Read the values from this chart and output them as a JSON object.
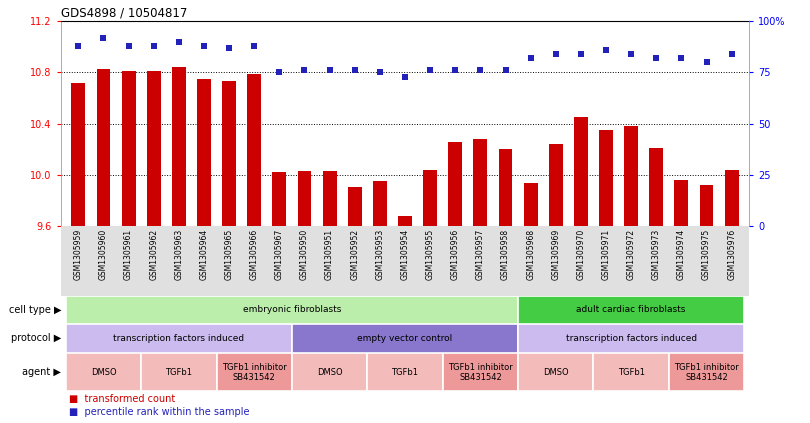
{
  "title": "GDS4898 / 10504817",
  "samples": [
    "GSM1305959",
    "GSM1305960",
    "GSM1305961",
    "GSM1305962",
    "GSM1305963",
    "GSM1305964",
    "GSM1305965",
    "GSM1305966",
    "GSM1305967",
    "GSM1305950",
    "GSM1305951",
    "GSM1305952",
    "GSM1305953",
    "GSM1305954",
    "GSM1305955",
    "GSM1305956",
    "GSM1305957",
    "GSM1305958",
    "GSM1305968",
    "GSM1305969",
    "GSM1305970",
    "GSM1305971",
    "GSM1305972",
    "GSM1305973",
    "GSM1305974",
    "GSM1305975",
    "GSM1305976"
  ],
  "bar_values": [
    10.72,
    10.83,
    10.81,
    10.81,
    10.84,
    10.75,
    10.73,
    10.79,
    10.02,
    10.03,
    10.03,
    9.91,
    9.95,
    9.68,
    10.04,
    10.26,
    10.28,
    10.2,
    9.94,
    10.24,
    10.45,
    10.35,
    10.38,
    10.21,
    9.96,
    9.92,
    10.04
  ],
  "dot_values": [
    88,
    92,
    88,
    88,
    90,
    88,
    87,
    88,
    75,
    76,
    76,
    76,
    75,
    73,
    76,
    76,
    76,
    76,
    82,
    84,
    84,
    86,
    84,
    82,
    82,
    80,
    84
  ],
  "ylim_left": [
    9.6,
    11.2
  ],
  "ylim_right": [
    0,
    100
  ],
  "yticks_left": [
    9.6,
    10.0,
    10.4,
    10.8,
    11.2
  ],
  "yticks_right": [
    0,
    25,
    50,
    75,
    100
  ],
  "ytick_labels_right": [
    "0",
    "25",
    "50",
    "75",
    "100%"
  ],
  "hlines": [
    10.0,
    10.4,
    10.8
  ],
  "bar_color": "#cc0000",
  "dot_color": "#2222bb",
  "bar_bottom": 9.6,
  "cell_embryonic": {
    "label": "embryonic fibroblasts",
    "start": 0,
    "end": 18,
    "color": "#bbeeaa"
  },
  "cell_adult": {
    "label": "adult cardiac fibroblasts",
    "start": 18,
    "end": 27,
    "color": "#44cc44"
  },
  "proto_tfi1": {
    "label": "transcription factors induced",
    "start": 0,
    "end": 9,
    "color": "#ccbbee"
  },
  "proto_evc": {
    "label": "empty vector control",
    "start": 9,
    "end": 18,
    "color": "#8877cc"
  },
  "proto_tfi2": {
    "label": "transcription factors induced",
    "start": 18,
    "end": 27,
    "color": "#ccbbee"
  },
  "agent_row": [
    {
      "label": "DMSO",
      "start": 0,
      "end": 3,
      "color": "#f4bbbb"
    },
    {
      "label": "TGFb1",
      "start": 3,
      "end": 6,
      "color": "#f4bbbb"
    },
    {
      "label": "TGFb1 inhibitor\nSB431542",
      "start": 6,
      "end": 9,
      "color": "#ee9999"
    },
    {
      "label": "DMSO",
      "start": 9,
      "end": 12,
      "color": "#f4bbbb"
    },
    {
      "label": "TGFb1",
      "start": 12,
      "end": 15,
      "color": "#f4bbbb"
    },
    {
      "label": "TGFb1 inhibitor\nSB431542",
      "start": 15,
      "end": 18,
      "color": "#ee9999"
    },
    {
      "label": "DMSO",
      "start": 18,
      "end": 21,
      "color": "#f4bbbb"
    },
    {
      "label": "TGFb1",
      "start": 21,
      "end": 24,
      "color": "#f4bbbb"
    },
    {
      "label": "TGFb1 inhibitor\nSB431542",
      "start": 24,
      "end": 27,
      "color": "#ee9999"
    }
  ],
  "legend_red": "transformed count",
  "legend_blue": "percentile rank within the sample",
  "bg_xlabel": "#e0e0e0",
  "spine_color": "#888888"
}
